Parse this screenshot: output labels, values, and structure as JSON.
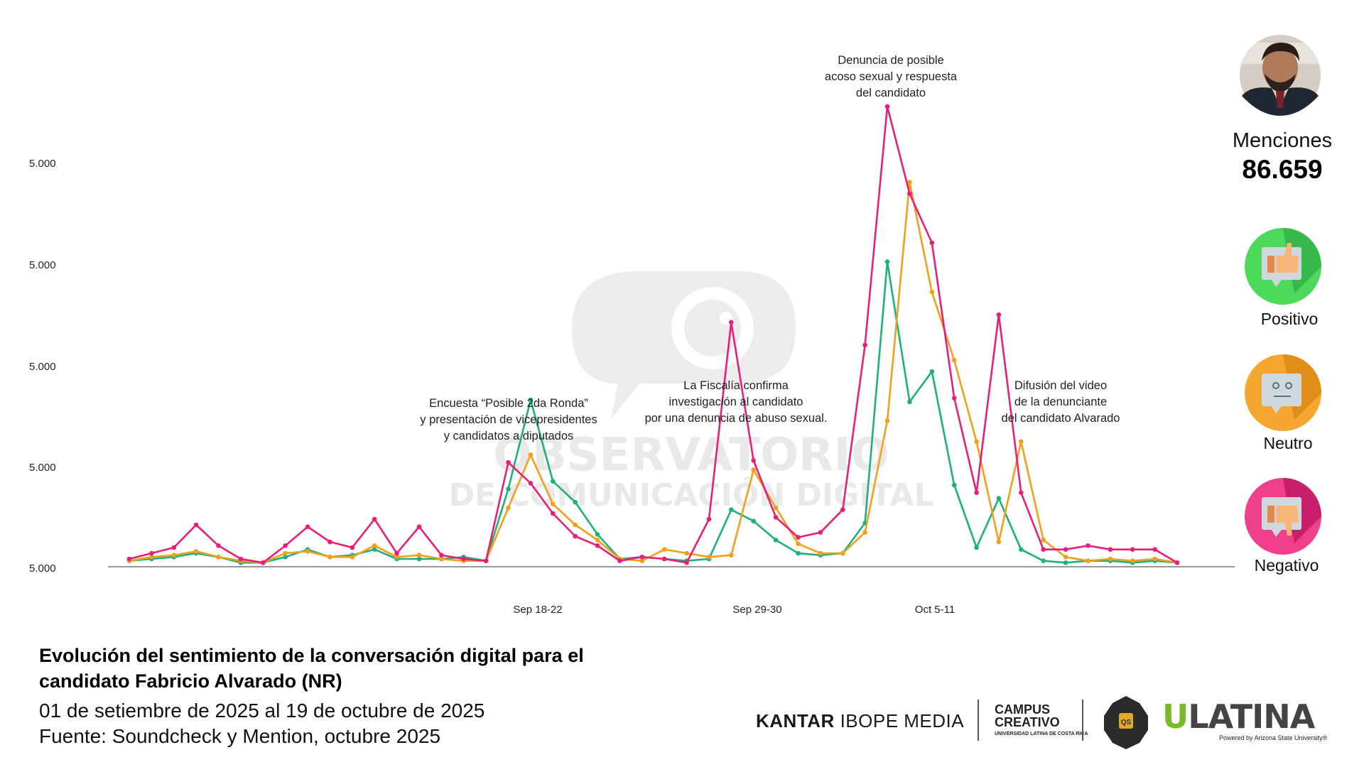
{
  "chart_data": {
    "type": "line",
    "x_tick_labels": [
      "Sep 18-22",
      "Sep 29-30",
      "Oct 5-11"
    ],
    "y_tick_labels": [
      "5.000",
      "5.000",
      "5.000",
      "5.000",
      "5.000"
    ],
    "ylim": [
      0,
      100
    ],
    "grid": false,
    "series": [
      {
        "name": "Negativo",
        "color": "#ea1e79",
        "values": [
          1.5,
          3,
          4.5,
          10.5,
          5,
          1.5,
          0.5,
          5,
          10,
          6,
          4.5,
          12,
          3,
          10,
          2.5,
          1.5,
          1,
          27,
          21.5,
          13.5,
          7.5,
          5,
          1,
          2,
          1.5,
          0.5,
          12,
          64,
          27.5,
          12.5,
          7.2,
          8.5,
          14.5,
          58,
          121,
          98,
          85,
          44,
          19,
          66,
          19,
          4,
          4,
          5,
          4,
          4,
          4,
          0.5
        ]
      },
      {
        "name": "Positivo",
        "color": "#1db07f",
        "values": [
          1,
          1.5,
          2,
          3,
          2,
          0.5,
          0.5,
          2,
          4,
          2,
          2.5,
          4,
          1.5,
          1.5,
          1.5,
          2,
          1,
          20,
          43.5,
          22,
          16.5,
          8,
          1.5,
          2,
          1.5,
          1,
          1.5,
          14.5,
          11.5,
          6.5,
          3,
          2.5,
          3,
          11,
          80,
          43,
          51,
          21,
          4.5,
          17.5,
          4,
          1,
          0.5,
          1,
          1,
          0.5,
          1,
          0.5
        ]
      },
      {
        "name": "Neutro",
        "color": "#f29f1b",
        "values": [
          1,
          2,
          2.5,
          3.5,
          2,
          1,
          0.5,
          3,
          3.5,
          2,
          2,
          5,
          2,
          2.5,
          1.5,
          1,
          1,
          15,
          29,
          16,
          10.5,
          6.5,
          1.5,
          1,
          4,
          3,
          2,
          2.5,
          25,
          15,
          5.5,
          3,
          3,
          8.5,
          38,
          101,
          72,
          54,
          32.5,
          6,
          32.5,
          6.5,
          2,
          1,
          1.5,
          1,
          1.5,
          0.5
        ]
      }
    ],
    "annotations": [
      {
        "lines": [
          "Encuesta “Posible 2da Ronda”",
          "y presentación de vicepresidentes",
          "y candidatos a diputados"
        ]
      },
      {
        "lines": [
          "La Fiscalía confirma",
          "investigación al candidato",
          "por una denuncia de abuso sexual."
        ]
      },
      {
        "lines": [
          "Denuncia de posible",
          "acoso sexual y respuesta",
          "del candidato"
        ]
      },
      {
        "lines": [
          "Difusión del video",
          "de la denunciante",
          "del candidato Alvarado"
        ]
      }
    ],
    "watermark": [
      "OBSERVATORIO",
      "DE COMUNICACIÓN DIGITAL"
    ]
  },
  "summary": {
    "mentions_label": "Menciones",
    "mentions_value": "86.659",
    "positive_label": "Positivo",
    "neutral_label": "Neutro",
    "negative_label": "Negativo"
  },
  "footer": {
    "title": "Evolución del sentimiento de la conversación digital para el candidato Fabricio Alvarado (NR)",
    "date_range": "01 de setiembre de 2025 al 19 de octubre de 2025",
    "source": "Fuente: Soundcheck y Mention, octubre 2025"
  },
  "logos": {
    "kantar_bold": "KANTAR",
    "kantar_rest": "IBOPE MEDIA",
    "campus_line1": "CAMPUS",
    "campus_line2": "CREATIVO",
    "campus_small": "UNIVERSIDAD LATINA DE COSTA RICA",
    "badge_text": "QS",
    "ulatina_u": "U",
    "ulatina_rest": "LATINA",
    "ulatina_sub": "Powered by Arizona State University®"
  },
  "colors": {
    "negative": "#ea1e79",
    "positive": "#1db07f",
    "neutral": "#f29f1b",
    "axis": "#777777"
  },
  "icons": [
    "candidate-photo",
    "thumbs-up-icon",
    "neutral-face-icon",
    "thumbs-down-icon"
  ]
}
